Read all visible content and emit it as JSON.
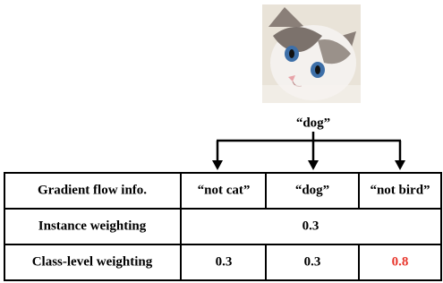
{
  "image_label": "“dog”",
  "table": {
    "header": [
      "Gradient flow info.",
      "“not cat”",
      "“dog”",
      "“not bird”"
    ],
    "rows": [
      [
        "Instance weighting",
        0.3
      ],
      [
        "Class-level weighting",
        0.3,
        0.3,
        0.8
      ]
    ]
  }
}
